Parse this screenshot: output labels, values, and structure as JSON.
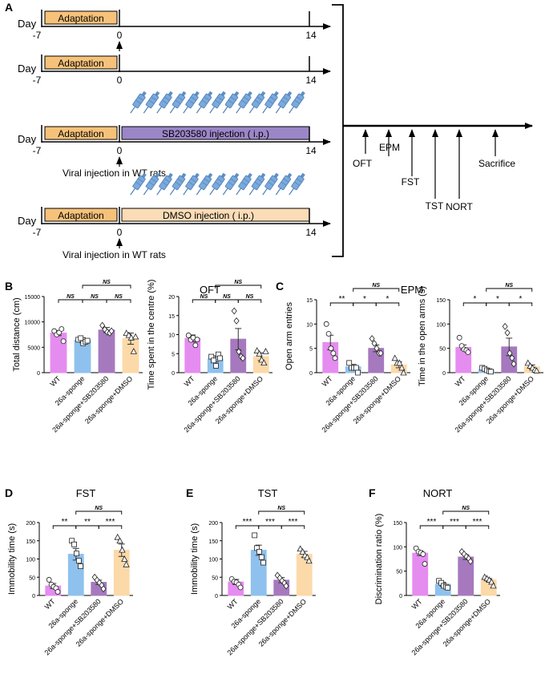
{
  "panel_letters": {
    "a": "A",
    "b": "B",
    "c": "C",
    "d": "D",
    "e": "E",
    "f": "F"
  },
  "timeline": {
    "day_label": "Day",
    "start_day": "-7",
    "zero_day": "0",
    "end_day": "14",
    "adaptation_label": "Adaptation",
    "sb_label": "SB203580 injection ( i.p.)",
    "dmso_label": "DMSO injection ( i.p.)",
    "viral_label": "Viral injection in WT rats",
    "tests": [
      "OFT",
      "EPM",
      "FST",
      "TST",
      "NORT",
      "Sacrifice"
    ],
    "colors": {
      "adaptation": "#f6c27a",
      "sb": "#9b86c8",
      "dmso": "#fbdcb6",
      "syringe": "#6f9fd1"
    }
  },
  "group_colors": [
    "#e58cf0",
    "#8fc1ee",
    "#a679bf",
    "#fcd9a8"
  ],
  "chart_data": [
    {
      "id": "oft_distance",
      "type": "bar",
      "panel": "B",
      "title": "OFT",
      "categories": [
        "WT",
        "26a-sponge",
        "26a-sponge+SB203580",
        "26a-sponge+DMSO"
      ],
      "values": [
        7800,
        6400,
        8400,
        6700
      ],
      "errors": [
        500,
        500,
        500,
        1100
      ],
      "points": [
        [
          8200,
          7500,
          7900,
          8600,
          6200
        ],
        [
          6500,
          6800,
          5800,
          6100,
          6300
        ],
        [
          9300,
          8500,
          8000,
          7800,
          8200
        ],
        [
          7800,
          7400,
          6900,
          4200,
          7100
        ]
      ],
      "ylabel": "Total distance (cm)",
      "ylim": [
        0,
        15000
      ],
      "yticks": [
        "0",
        "5000",
        "10000",
        "15000"
      ],
      "sig": [
        {
          "a": 0,
          "b": 1,
          "label": "NS",
          "level": 0
        },
        {
          "a": 1,
          "b": 2,
          "label": "NS",
          "level": 0
        },
        {
          "a": 2,
          "b": 3,
          "label": "NS",
          "level": 0
        },
        {
          "a": 1,
          "b": 3,
          "label": "NS",
          "level": 1
        }
      ]
    },
    {
      "id": "oft_centre",
      "type": "bar",
      "panel": "B",
      "categories": [
        "WT",
        "26a-sponge",
        "26a-sponge+SB203580",
        "26a-sponge+DMSO"
      ],
      "values": [
        9,
        3.6,
        8.8,
        4.2
      ],
      "errors": [
        0.9,
        0.8,
        2.8,
        1.0
      ],
      "points": [
        [
          9.8,
          8.6,
          9.2,
          7.2,
          8.7
        ],
        [
          4.2,
          3.2,
          1.8,
          4.8,
          3.8
        ],
        [
          16.2,
          13.6,
          5.5,
          4.2,
          3.8
        ],
        [
          5.8,
          5.0,
          3.4,
          2.6,
          5.6
        ]
      ],
      "ylabel": "Time spent in the centre (%)",
      "ylim": [
        0,
        20
      ],
      "yticks": [
        "0",
        "5",
        "10",
        "15",
        "20"
      ],
      "sig": [
        {
          "a": 0,
          "b": 1,
          "label": "NS",
          "level": 0
        },
        {
          "a": 1,
          "b": 2,
          "label": "NS",
          "level": 0
        },
        {
          "a": 2,
          "b": 3,
          "label": "NS",
          "level": 0
        },
        {
          "a": 1,
          "b": 3,
          "label": "NS",
          "level": 1
        }
      ]
    },
    {
      "id": "epm_entries",
      "type": "bar",
      "panel": "C",
      "title": "EPM",
      "categories": [
        "WT",
        "26a-sponge",
        "26a-sponge+SB203580",
        "26a-sponge+DMSO"
      ],
      "values": [
        6.2,
        1.2,
        5.0,
        1.6
      ],
      "errors": [
        1.5,
        0.5,
        0.7,
        0.6
      ],
      "points": [
        [
          10,
          8,
          5,
          4,
          3
        ],
        [
          2,
          1,
          1,
          1,
          0
        ],
        [
          7,
          6,
          5,
          4,
          4
        ],
        [
          3,
          2,
          2,
          1,
          0
        ]
      ],
      "ylabel": "Open arm entries",
      "ylim": [
        0,
        15
      ],
      "yticks": [
        "0",
        "5",
        "10",
        "15"
      ],
      "sig": [
        {
          "a": 0,
          "b": 1,
          "label": "**",
          "level": 0
        },
        {
          "a": 1,
          "b": 2,
          "label": "*",
          "level": 0
        },
        {
          "a": 2,
          "b": 3,
          "label": "*",
          "level": 0
        },
        {
          "a": 1,
          "b": 3,
          "label": "NS",
          "level": 1
        }
      ]
    },
    {
      "id": "epm_time",
      "type": "bar",
      "panel": "C",
      "categories": [
        "WT",
        "26a-sponge",
        "26a-sponge+SB203580",
        "26a-sponge+DMSO"
      ],
      "values": [
        52,
        6,
        53,
        12
      ],
      "errors": [
        5,
        2,
        18,
        4
      ],
      "points": [
        [
          72,
          55,
          48,
          46,
          42
        ],
        [
          10,
          8,
          5,
          3,
          2
        ],
        [
          95,
          82,
          40,
          30,
          18
        ],
        [
          20,
          14,
          10,
          6,
          4
        ]
      ],
      "ylabel": "Time in the open arms (s)",
      "ylim": [
        0,
        150
      ],
      "yticks": [
        "0",
        "50",
        "100",
        "150"
      ],
      "sig": [
        {
          "a": 0,
          "b": 1,
          "label": "*",
          "level": 0
        },
        {
          "a": 1,
          "b": 2,
          "label": "*",
          "level": 0
        },
        {
          "a": 2,
          "b": 3,
          "label": "*",
          "level": 0
        },
        {
          "a": 1,
          "b": 3,
          "label": "NS",
          "level": 1
        }
      ]
    },
    {
      "id": "fst",
      "type": "bar",
      "panel": "D",
      "title": "FST",
      "categories": [
        "WT",
        "26a-sponge",
        "26a-sponge+SB203580",
        "26a-sponge+DMSO"
      ],
      "values": [
        26,
        113,
        36,
        124
      ],
      "errors": [
        7,
        16,
        6,
        17
      ],
      "points": [
        [
          43,
          30,
          24,
          20,
          10
        ],
        [
          150,
          140,
          115,
          95,
          80
        ],
        [
          50,
          42,
          35,
          28,
          18
        ],
        [
          160,
          150,
          125,
          100,
          85
        ]
      ],
      "ylabel": "Immobility time (s)",
      "ylim": [
        0,
        200
      ],
      "yticks": [
        "0",
        "50",
        "100",
        "150",
        "200"
      ],
      "sig": [
        {
          "a": 0,
          "b": 1,
          "label": "**",
          "level": 0
        },
        {
          "a": 1,
          "b": 2,
          "label": "**",
          "level": 0
        },
        {
          "a": 2,
          "b": 3,
          "label": "***",
          "level": 0
        },
        {
          "a": 1,
          "b": 3,
          "label": "NS",
          "level": 1
        }
      ]
    },
    {
      "id": "tst",
      "type": "bar",
      "panel": "E",
      "title": "TST",
      "categories": [
        "WT",
        "26a-sponge",
        "26a-sponge+SB203580",
        "26a-sponge+DMSO"
      ],
      "values": [
        37,
        124,
        42,
        113
      ],
      "errors": [
        7,
        14,
        7,
        8
      ],
      "points": [
        [
          45,
          38,
          36,
          30,
          22
        ],
        [
          165,
          130,
          120,
          105,
          90
        ],
        [
          55,
          48,
          40,
          34,
          26
        ],
        [
          128,
          120,
          110,
          105,
          95
        ]
      ],
      "ylabel": "Immobility time (s)",
      "ylim": [
        0,
        200
      ],
      "yticks": [
        "0",
        "50",
        "100",
        "150",
        "200"
      ],
      "sig": [
        {
          "a": 0,
          "b": 1,
          "label": "***",
          "level": 0
        },
        {
          "a": 1,
          "b": 2,
          "label": "***",
          "level": 0
        },
        {
          "a": 2,
          "b": 3,
          "label": "***",
          "level": 0
        },
        {
          "a": 1,
          "b": 3,
          "label": "NS",
          "level": 1
        }
      ]
    },
    {
      "id": "nort",
      "type": "bar",
      "panel": "F",
      "title": "NORT",
      "categories": [
        "WT",
        "26a-sponge",
        "26a-sponge+SB203580",
        "26a-sponge+DMSO"
      ],
      "values": [
        87,
        23,
        79,
        32
      ],
      "errors": [
        5,
        4,
        5,
        3
      ],
      "points": [
        [
          97,
          90,
          88,
          85,
          65
        ],
        [
          30,
          26,
          20,
          18,
          16
        ],
        [
          90,
          85,
          80,
          76,
          70
        ],
        [
          38,
          35,
          32,
          28,
          20
        ]
      ],
      "ylabel": "Discrimination ratio (%)",
      "ylim": [
        0,
        150
      ],
      "yticks": [
        "0",
        "50",
        "100",
        "150"
      ],
      "sig": [
        {
          "a": 0,
          "b": 1,
          "label": "***",
          "level": 0
        },
        {
          "a": 1,
          "b": 2,
          "label": "***",
          "level": 0
        },
        {
          "a": 2,
          "b": 3,
          "label": "***",
          "level": 0
        },
        {
          "a": 1,
          "b": 3,
          "label": "NS",
          "level": 1
        }
      ]
    }
  ]
}
